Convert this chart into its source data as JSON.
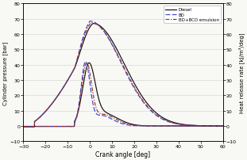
{
  "xlabel": "Crank angle [deg]",
  "ylabel_left": "Cylinder pressure [bar]",
  "ylabel_right": "Heat release rate [kJ/m³/deg]",
  "xlim": [
    -30,
    60
  ],
  "ylim_left": [
    -10,
    80
  ],
  "ylim_right": [
    -10,
    80
  ],
  "yticks": [
    -10,
    0,
    10,
    20,
    30,
    40,
    50,
    60,
    70,
    80
  ],
  "xticks": [
    -30,
    -20,
    -10,
    0,
    10,
    20,
    30,
    40,
    50,
    60
  ],
  "legend_labels": [
    "Diesel",
    "BD",
    "BD+BCO emulsion"
  ],
  "colors": [
    "#111111",
    "#4444cc",
    "#993333"
  ],
  "bg_color": "#f8f8f5",
  "grid_color": "#d8d8d8"
}
